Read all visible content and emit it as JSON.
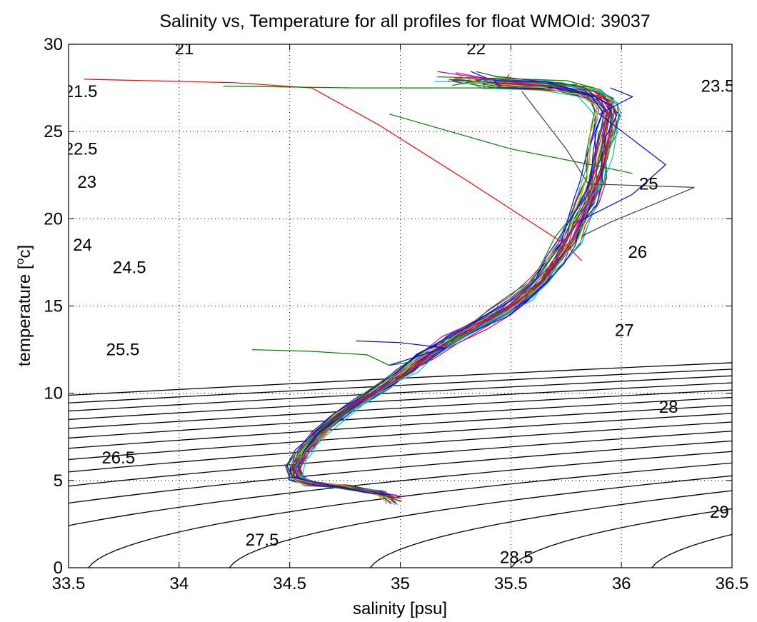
{
  "chart_data": {
    "type": "line",
    "title": "Salinity vs, Temperature for all profiles for float WMOId: 39037",
    "xlabel": "salinity [psu]",
    "ylabel": "temperature [",
    "ylabel_sup": "o",
    "ylabel_tail": "c]",
    "xlim": [
      33.5,
      36.5
    ],
    "ylim": [
      0,
      30
    ],
    "xticks": [
      33.5,
      34,
      34.5,
      35,
      35.5,
      36,
      36.5
    ],
    "xtick_labels": [
      "33.5",
      "34",
      "34.5",
      "35",
      "35.5",
      "36",
      "36.5"
    ],
    "yticks": [
      0,
      5,
      10,
      15,
      20,
      25,
      30
    ],
    "ytick_labels": [
      "0",
      "5",
      "10",
      "15",
      "20",
      "25",
      "30"
    ],
    "grid": true,
    "contour_levels": [
      {
        "level": 21,
        "label": "21",
        "label_at": [
          33.98,
          29.75
        ]
      },
      {
        "level": 21.5,
        "label": "21.5",
        "label_at": [
          33.48,
          27.3
        ]
      },
      {
        "level": 22,
        "label": "22",
        "label_at": [
          35.3,
          29.75
        ]
      },
      {
        "level": 22.5,
        "label": "22.5",
        "label_at": [
          33.48,
          24.0
        ]
      },
      {
        "level": 23,
        "label": "23",
        "label_at": [
          33.54,
          22.1
        ]
      },
      {
        "level": 23.5,
        "label": "23.5",
        "label_at": [
          36.36,
          27.6
        ]
      },
      {
        "level": 24,
        "label": "24",
        "label_at": [
          33.52,
          18.5
        ]
      },
      {
        "level": 24.5,
        "label": "24.5",
        "label_at": [
          33.7,
          17.2
        ]
      },
      {
        "level": 25,
        "label": "25",
        "label_at": [
          36.08,
          22.0
        ]
      },
      {
        "level": 25.5,
        "label": "25.5",
        "label_at": [
          33.67,
          12.5
        ]
      },
      {
        "level": 26,
        "label": "26",
        "label_at": [
          36.03,
          18.1
        ]
      },
      {
        "level": 26.5,
        "label": "26.5",
        "label_at": [
          33.65,
          6.3
        ]
      },
      {
        "level": 27,
        "label": "27",
        "label_at": [
          35.97,
          13.6
        ]
      },
      {
        "level": 27.5,
        "label": "27.5",
        "label_at": [
          34.3,
          1.6
        ]
      },
      {
        "level": 28,
        "label": "28",
        "label_at": [
          36.17,
          9.2
        ]
      },
      {
        "level": 28.5,
        "label": "28.5",
        "label_at": [
          35.45,
          0.6
        ]
      },
      {
        "level": 29,
        "label": "29",
        "label_at": [
          36.4,
          3.2
        ]
      }
    ],
    "profile_colors": [
      "#0000ff",
      "#008000",
      "#ff0000",
      "#00bfbf",
      "#bf00bf",
      "#bfbf00",
      "#404040"
    ],
    "profile_count": 36,
    "profile_template": [
      [
        34.97,
        3.6
      ],
      [
        34.9,
        4.3
      ],
      [
        34.75,
        4.65
      ],
      [
        34.6,
        4.8
      ],
      [
        34.53,
        5.1
      ],
      [
        34.52,
        5.7
      ],
      [
        34.56,
        6.6
      ],
      [
        34.63,
        7.7
      ],
      [
        34.72,
        8.7
      ],
      [
        34.83,
        9.6
      ],
      [
        34.93,
        10.4
      ],
      [
        35.03,
        11.3
      ],
      [
        35.13,
        12.2
      ],
      [
        35.24,
        13.1
      ],
      [
        35.35,
        13.9
      ],
      [
        35.45,
        14.6
      ],
      [
        35.55,
        15.4
      ],
      [
        35.63,
        16.4
      ],
      [
        35.7,
        17.6
      ],
      [
        35.76,
        18.7
      ],
      [
        35.8,
        19.8
      ],
      [
        35.85,
        21.0
      ],
      [
        35.88,
        22.2
      ],
      [
        35.9,
        23.5
      ],
      [
        35.92,
        24.8
      ],
      [
        35.94,
        26.0
      ],
      [
        35.92,
        26.7
      ],
      [
        35.85,
        27.2
      ],
      [
        35.7,
        27.6
      ],
      [
        35.45,
        27.8
      ],
      [
        35.2,
        27.9
      ]
    ],
    "extra_profiles": [
      {
        "color": "#ff0000",
        "points": [
          [
            33.57,
            28.0
          ],
          [
            34.25,
            27.8
          ],
          [
            34.6,
            27.5
          ],
          [
            34.9,
            25.4
          ],
          [
            35.3,
            22.2
          ],
          [
            35.75,
            18.5
          ],
          [
            35.82,
            17.6
          ]
        ]
      },
      {
        "color": "#008000",
        "points": [
          [
            34.2,
            27.6
          ],
          [
            34.8,
            27.5
          ],
          [
            35.4,
            27.5
          ],
          [
            35.8,
            27.7
          ]
        ]
      },
      {
        "color": "#008000",
        "points": [
          [
            34.95,
            26.0
          ],
          [
            35.5,
            24.0
          ],
          [
            35.9,
            23.0
          ],
          [
            36.05,
            22.6
          ]
        ]
      },
      {
        "color": "#404040",
        "points": [
          [
            35.55,
            27.3
          ],
          [
            35.75,
            24.0
          ],
          [
            35.85,
            22.0
          ],
          [
            36.33,
            21.8
          ],
          [
            35.95,
            19.8
          ],
          [
            35.82,
            19.0
          ]
        ]
      },
      {
        "color": "#008000",
        "points": [
          [
            34.33,
            12.5
          ],
          [
            34.6,
            12.4
          ],
          [
            34.85,
            12.2
          ],
          [
            34.95,
            11.6
          ],
          [
            35.05,
            11.8
          ]
        ]
      },
      {
        "color": "#0000ff",
        "points": [
          [
            35.95,
            27.5
          ],
          [
            36.05,
            27.0
          ],
          [
            35.9,
            26.0
          ],
          [
            36.2,
            23.1
          ],
          [
            36.05,
            21.4
          ],
          [
            35.8,
            19.8
          ]
        ]
      },
      {
        "color": "#0000ff",
        "points": [
          [
            34.8,
            13.0
          ],
          [
            35.0,
            12.9
          ],
          [
            35.2,
            12.6
          ],
          [
            34.95,
            11.6
          ]
        ]
      }
    ]
  }
}
